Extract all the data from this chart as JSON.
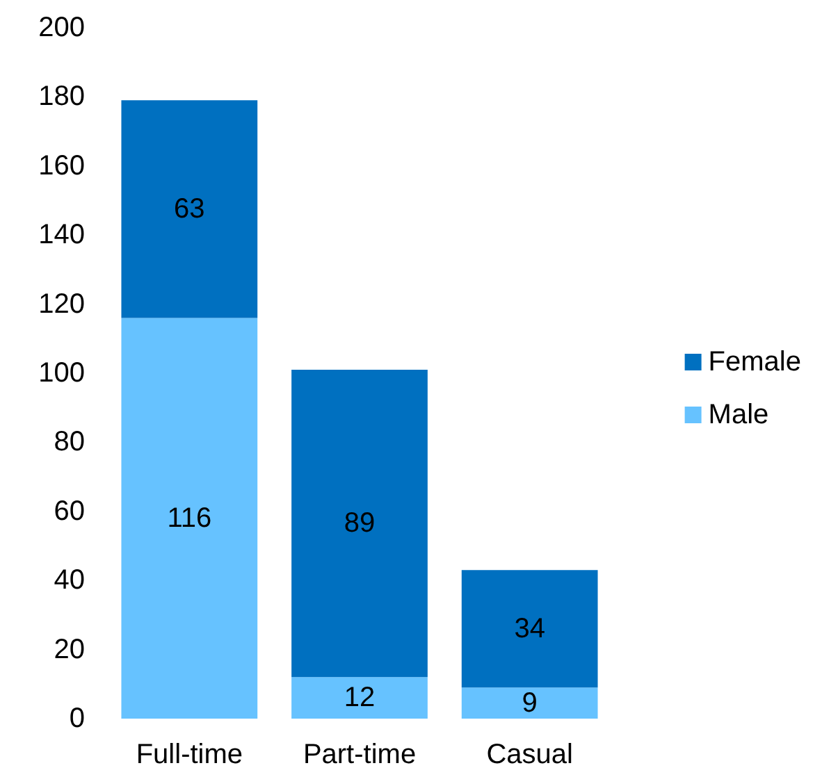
{
  "chart_data": {
    "type": "bar",
    "stacked": true,
    "categories": [
      "Full-time",
      "Part-time",
      "Casual"
    ],
    "series": [
      {
        "name": "Male",
        "color": "#66c2ff",
        "values": [
          116,
          12,
          9
        ]
      },
      {
        "name": "Female",
        "color": "#0070c0",
        "values": [
          63,
          89,
          34
        ]
      }
    ],
    "ylim": [
      0,
      200
    ],
    "yticks": [
      0,
      20,
      40,
      60,
      80,
      100,
      120,
      140,
      160,
      180,
      200
    ],
    "grid": false,
    "legend": "right",
    "data_labels": true
  }
}
